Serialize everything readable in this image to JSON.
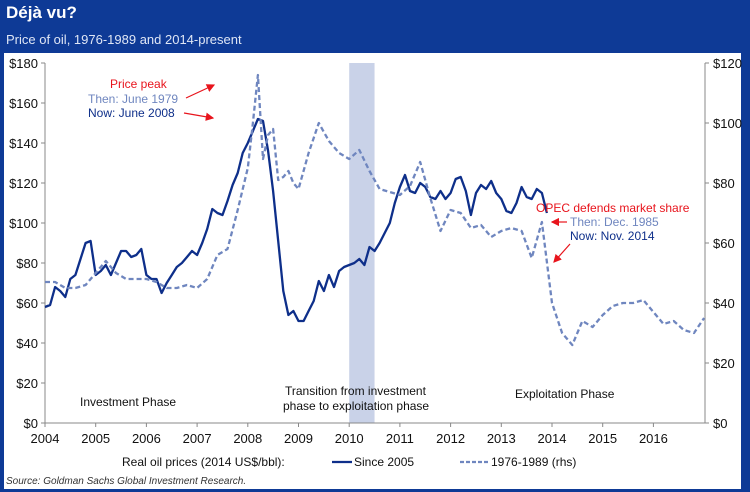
{
  "header": {
    "title": "Déjà vu?",
    "subtitle": "Price of oil, 1976-1989 and 2014-present"
  },
  "source": "Source: Goldman Sachs Global Investment Research.",
  "chart_data": {
    "type": "line",
    "title": "Déjà vu?",
    "subtitle": "Price of oil, 1976-1989 and 2014-present",
    "xlabel": "",
    "ylabel": "Real oil prices (2014 US$/bbl)",
    "xlim": [
      2004,
      2017
    ],
    "x_ticks": [
      "2004",
      "2005",
      "2006",
      "2007",
      "2008",
      "2009",
      "2010",
      "2011",
      "2012",
      "2013",
      "2014",
      "2015",
      "2016"
    ],
    "ylim_left": [
      0,
      180
    ],
    "y_ticks_left": [
      "$0",
      "$20",
      "$40",
      "$60",
      "$80",
      "$100",
      "$120",
      "$140",
      "$160",
      "$180"
    ],
    "ylim_right": [
      0,
      120
    ],
    "y_ticks_right": [
      "$0",
      "$20",
      "$40",
      "$60",
      "$80",
      "$100",
      "$120"
    ],
    "grid": false,
    "legend": {
      "placement": "bottom",
      "prefix": "Real oil prices (2014 US$/bbl):",
      "entries": [
        "Since 2005",
        "1976-1989 (rhs)"
      ]
    },
    "shaded_region": {
      "x": [
        2010.0,
        2010.5
      ],
      "color": "#c9d2e8"
    },
    "series": [
      {
        "name": "Since 2005",
        "axis": "left",
        "color": "#0e2f8a",
        "style": "solid",
        "x": [
          2004.0,
          2004.1,
          2004.2,
          2004.3,
          2004.4,
          2004.5,
          2004.6,
          2004.7,
          2004.8,
          2004.9,
          2005.0,
          2005.1,
          2005.2,
          2005.3,
          2005.4,
          2005.5,
          2005.6,
          2005.7,
          2005.8,
          2005.9,
          2006.0,
          2006.1,
          2006.2,
          2006.3,
          2006.4,
          2006.5,
          2006.6,
          2006.7,
          2006.8,
          2006.9,
          2007.0,
          2007.1,
          2007.2,
          2007.3,
          2007.4,
          2007.5,
          2007.6,
          2007.7,
          2007.8,
          2007.9,
          2008.0,
          2008.1,
          2008.2,
          2008.3,
          2008.4,
          2008.5,
          2008.6,
          2008.7,
          2008.8,
          2008.9,
          2009.0,
          2009.1,
          2009.2,
          2009.3,
          2009.4,
          2009.5,
          2009.6,
          2009.7,
          2009.8,
          2009.9,
          2010.0,
          2010.1,
          2010.2,
          2010.3,
          2010.4,
          2010.5,
          2010.6,
          2010.7,
          2010.8,
          2010.9,
          2011.0,
          2011.1,
          2011.2,
          2011.3,
          2011.4,
          2011.5,
          2011.6,
          2011.7,
          2011.8,
          2011.9,
          2012.0,
          2012.1,
          2012.2,
          2012.3,
          2012.4,
          2012.5,
          2012.6,
          2012.7,
          2012.8,
          2012.9,
          2013.0,
          2013.1,
          2013.2,
          2013.3,
          2013.4,
          2013.5,
          2013.6,
          2013.7,
          2013.8,
          2013.9
        ],
        "values": [
          58,
          59,
          68,
          66,
          63,
          72,
          74,
          82,
          90,
          91,
          74,
          76,
          79,
          74,
          80,
          86,
          86,
          83,
          84,
          87,
          74,
          72,
          72,
          65,
          70,
          74,
          78,
          80,
          83,
          86,
          84,
          90,
          97,
          107,
          105,
          104,
          111,
          119,
          125,
          135,
          140,
          146,
          152,
          151,
          136,
          116,
          91,
          66,
          54,
          56,
          51,
          51,
          56,
          61,
          71,
          66,
          74,
          68,
          76,
          78,
          79,
          80,
          82,
          79,
          88,
          86,
          90,
          95,
          100,
          110,
          118,
          124,
          116,
          115,
          120,
          118,
          113,
          112,
          116,
          112,
          115,
          122,
          123,
          116,
          104,
          115,
          119,
          117,
          121,
          115,
          112,
          106,
          105,
          110,
          118,
          113,
          112,
          117,
          115,
          105
        ]
      },
      {
        "name": "1976-1989 (rhs)",
        "axis": "right",
        "color": "#6f86bf",
        "style": "dashed",
        "x": [
          2004.0,
          2004.2,
          2004.4,
          2004.6,
          2004.8,
          2005.0,
          2005.2,
          2005.4,
          2005.6,
          2005.8,
          2006.0,
          2006.2,
          2006.4,
          2006.6,
          2006.8,
          2007.0,
          2007.2,
          2007.4,
          2007.6,
          2007.8,
          2008.0,
          2008.1,
          2008.2,
          2008.3,
          2008.4,
          2008.5,
          2008.6,
          2008.7,
          2008.8,
          2008.9,
          2009.0,
          2009.2,
          2009.4,
          2009.6,
          2009.8,
          2010.0,
          2010.2,
          2010.4,
          2010.6,
          2010.8,
          2011.0,
          2011.2,
          2011.4,
          2011.6,
          2011.8,
          2012.0,
          2012.2,
          2012.4,
          2012.6,
          2012.8,
          2013.0,
          2013.2,
          2013.4,
          2013.6,
          2013.8,
          2014.0,
          2014.2,
          2014.4,
          2014.6,
          2014.8,
          2015.0,
          2015.2,
          2015.4,
          2015.6,
          2015.8,
          2016.0,
          2016.2,
          2016.4,
          2016.6,
          2016.8,
          2017.0
        ],
        "values": [
          47,
          47,
          45,
          45,
          46,
          50,
          54,
          50,
          48,
          48,
          48,
          47,
          45,
          45,
          46,
          45,
          48,
          56,
          58,
          71,
          85,
          100,
          116,
          88,
          96,
          98,
          81,
          82,
          84,
          80,
          78,
          90,
          100,
          94,
          90,
          88,
          91,
          84,
          78,
          77,
          76,
          79,
          87,
          75,
          64,
          71,
          70,
          65,
          66,
          62,
          64,
          65,
          64,
          55,
          67,
          40,
          30,
          26,
          34,
          32,
          36,
          39,
          40,
          40,
          41,
          37,
          33,
          34,
          31,
          30,
          35
        ]
      }
    ],
    "annotations": [
      {
        "text": "Price peak",
        "color": "#e8141c"
      },
      {
        "text": "Then: June 1979",
        "color": "#6f86bf"
      },
      {
        "text": "Now: June 2008",
        "color": "#0e2f8a"
      },
      {
        "text": "OPEC defends market share",
        "color": "#e8141c"
      },
      {
        "text": "Then: Dec. 1985",
        "color": "#6f86bf"
      },
      {
        "text": "Now: Nov. 2014",
        "color": "#0e2f8a"
      },
      {
        "text": "Investment Phase",
        "color": "#111111"
      },
      {
        "text": "Transition from investment",
        "color": "#111111"
      },
      {
        "text": "phase to exploitation phase",
        "color": "#111111"
      },
      {
        "text": "Exploitation Phase",
        "color": "#111111"
      }
    ]
  }
}
